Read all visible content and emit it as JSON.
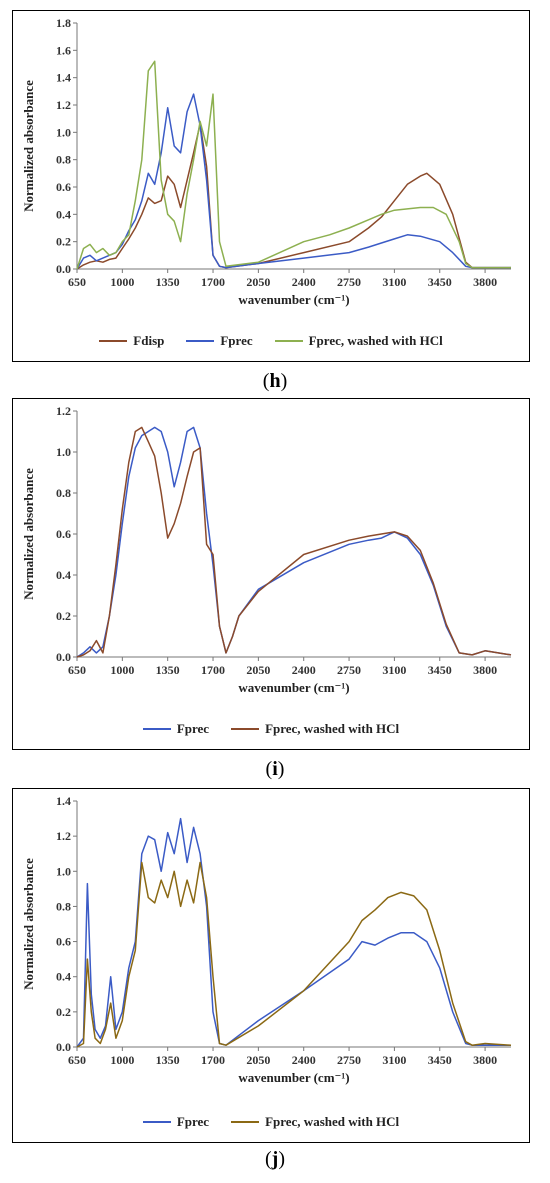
{
  "chart_data": [
    {
      "type": "line",
      "panel_label": "h",
      "xlabel": "wavenumber (cm⁻¹)",
      "ylabel": "Normalized absorbance",
      "xlim": [
        650,
        4000
      ],
      "ylim": [
        0,
        1.8
      ],
      "xticks": [
        650,
        1000,
        1350,
        1700,
        2050,
        2400,
        2750,
        3100,
        3450,
        3800
      ],
      "yticks": [
        "0.0",
        "0.2",
        "0.4",
        "0.6",
        "0.8",
        "1.0",
        "1.2",
        "1.4",
        "1.6",
        "1.8"
      ],
      "legend_position": "bottom",
      "series": [
        {
          "name": "Fdisp",
          "color": "#8B4A2B",
          "x": [
            650,
            700,
            750,
            800,
            850,
            900,
            950,
            1000,
            1050,
            1100,
            1150,
            1200,
            1250,
            1300,
            1350,
            1400,
            1450,
            1500,
            1550,
            1600,
            1650,
            1700,
            1750,
            1800,
            2050,
            2400,
            2750,
            2900,
            3000,
            3100,
            3200,
            3300,
            3350,
            3450,
            3550,
            3650,
            3700,
            3800,
            4000
          ],
          "y": [
            0,
            0.03,
            0.05,
            0.06,
            0.05,
            0.07,
            0.08,
            0.15,
            0.22,
            0.3,
            0.4,
            0.52,
            0.48,
            0.5,
            0.68,
            0.62,
            0.45,
            0.65,
            0.85,
            1.06,
            0.75,
            0.1,
            0.02,
            0.01,
            0.04,
            0.12,
            0.2,
            0.3,
            0.38,
            0.5,
            0.62,
            0.68,
            0.7,
            0.62,
            0.4,
            0.05,
            0.01,
            0.01,
            0.01
          ]
        },
        {
          "name": "Fprec",
          "color": "#3B5BC6",
          "x": [
            650,
            700,
            750,
            800,
            850,
            900,
            950,
            1000,
            1050,
            1100,
            1150,
            1200,
            1250,
            1300,
            1350,
            1400,
            1450,
            1500,
            1550,
            1600,
            1650,
            1700,
            1750,
            1800,
            2050,
            2400,
            2750,
            2900,
            3000,
            3100,
            3200,
            3300,
            3450,
            3550,
            3650,
            3700,
            3800,
            4000
          ],
          "y": [
            0,
            0.08,
            0.1,
            0.06,
            0.08,
            0.1,
            0.12,
            0.18,
            0.28,
            0.36,
            0.5,
            0.7,
            0.62,
            0.85,
            1.18,
            0.9,
            0.85,
            1.15,
            1.28,
            1.05,
            0.65,
            0.1,
            0.02,
            0.01,
            0.04,
            0.08,
            0.12,
            0.16,
            0.19,
            0.22,
            0.25,
            0.24,
            0.2,
            0.12,
            0.02,
            0.01,
            0.01,
            0.01
          ]
        },
        {
          "name": "Fprec, washed with HCl",
          "color": "#8DB050",
          "x": [
            650,
            700,
            750,
            800,
            850,
            900,
            950,
            1000,
            1050,
            1100,
            1150,
            1200,
            1250,
            1300,
            1350,
            1400,
            1450,
            1500,
            1550,
            1600,
            1650,
            1700,
            1750,
            1800,
            2050,
            2400,
            2600,
            2750,
            2900,
            3000,
            3100,
            3200,
            3300,
            3400,
            3500,
            3600,
            3650,
            3700,
            3800,
            4000
          ],
          "y": [
            0,
            0.15,
            0.18,
            0.12,
            0.15,
            0.1,
            0.12,
            0.2,
            0.25,
            0.5,
            0.8,
            1.45,
            1.52,
            0.65,
            0.4,
            0.35,
            0.2,
            0.55,
            0.8,
            1.08,
            0.9,
            1.28,
            0.2,
            0.02,
            0.05,
            0.2,
            0.25,
            0.3,
            0.36,
            0.4,
            0.43,
            0.44,
            0.45,
            0.45,
            0.4,
            0.2,
            0.04,
            0.01,
            0.01,
            0.01
          ]
        }
      ]
    },
    {
      "type": "line",
      "panel_label": "i",
      "xlabel": "wavenumber (cm⁻¹)",
      "ylabel": "Normalized absorbance",
      "xlim": [
        650,
        4000
      ],
      "ylim": [
        0,
        1.2
      ],
      "xticks": [
        650,
        1000,
        1350,
        1700,
        2050,
        2400,
        2750,
        3100,
        3450,
        3800
      ],
      "yticks": [
        "0.0",
        "0.2",
        "0.4",
        "0.6",
        "0.8",
        "1.0",
        "1.2"
      ],
      "legend_position": "bottom",
      "series": [
        {
          "name": "Fprec",
          "color": "#3B5BC6",
          "x": [
            650,
            700,
            750,
            800,
            850,
            900,
            950,
            1000,
            1050,
            1100,
            1150,
            1200,
            1250,
            1300,
            1350,
            1400,
            1450,
            1500,
            1550,
            1600,
            1650,
            1700,
            1750,
            1800,
            1850,
            1900,
            2050,
            2400,
            2750,
            2900,
            3000,
            3100,
            3200,
            3300,
            3400,
            3500,
            3600,
            3700,
            3800,
            4000
          ],
          "y": [
            0,
            0.02,
            0.05,
            0.02,
            0.05,
            0.2,
            0.4,
            0.65,
            0.88,
            1.02,
            1.08,
            1.1,
            1.12,
            1.1,
            1.0,
            0.83,
            0.95,
            1.1,
            1.12,
            1.02,
            0.7,
            0.45,
            0.15,
            0.02,
            0.1,
            0.2,
            0.33,
            0.46,
            0.55,
            0.57,
            0.58,
            0.61,
            0.58,
            0.5,
            0.35,
            0.15,
            0.02,
            0.01,
            0.03,
            0.01
          ]
        },
        {
          "name": "Fprec, washed with HCl",
          "color": "#8B4A2B",
          "x": [
            650,
            700,
            750,
            800,
            850,
            900,
            950,
            1000,
            1050,
            1100,
            1150,
            1200,
            1250,
            1300,
            1350,
            1400,
            1450,
            1500,
            1550,
            1600,
            1650,
            1700,
            1750,
            1800,
            1850,
            1900,
            2050,
            2400,
            2750,
            2900,
            3000,
            3100,
            3200,
            3300,
            3400,
            3500,
            3600,
            3700,
            3800,
            4000
          ],
          "y": [
            0,
            0.01,
            0.03,
            0.08,
            0.02,
            0.2,
            0.45,
            0.72,
            0.95,
            1.1,
            1.12,
            1.05,
            0.98,
            0.8,
            0.58,
            0.65,
            0.75,
            0.88,
            1.0,
            1.02,
            0.55,
            0.5,
            0.15,
            0.02,
            0.1,
            0.2,
            0.32,
            0.5,
            0.57,
            0.59,
            0.6,
            0.61,
            0.59,
            0.52,
            0.36,
            0.16,
            0.02,
            0.01,
            0.03,
            0.01
          ]
        }
      ]
    },
    {
      "type": "line",
      "panel_label": "j",
      "xlabel": "wavenumber (cm⁻¹)",
      "ylabel": "Normalized absorbance",
      "xlim": [
        650,
        4000
      ],
      "ylim": [
        0,
        1.4
      ],
      "xticks": [
        650,
        1000,
        1350,
        1700,
        2050,
        2400,
        2750,
        3100,
        3450,
        3800
      ],
      "yticks": [
        "0.0",
        "0.2",
        "0.4",
        "0.6",
        "0.8",
        "1.0",
        "1.2",
        "1.4"
      ],
      "legend_position": "bottom",
      "series": [
        {
          "name": "Fprec",
          "color": "#3B5BC6",
          "x": [
            650,
            700,
            730,
            760,
            790,
            830,
            870,
            910,
            950,
            1000,
            1050,
            1100,
            1150,
            1200,
            1250,
            1300,
            1350,
            1400,
            1450,
            1500,
            1550,
            1600,
            1650,
            1700,
            1750,
            1800,
            2050,
            2400,
            2750,
            2850,
            2950,
            3050,
            3150,
            3250,
            3350,
            3450,
            3550,
            3650,
            3700,
            3800,
            4000
          ],
          "y": [
            0,
            0.05,
            0.93,
            0.3,
            0.1,
            0.05,
            0.12,
            0.4,
            0.1,
            0.2,
            0.45,
            0.6,
            1.1,
            1.2,
            1.18,
            1.0,
            1.22,
            1.1,
            1.3,
            1.05,
            1.25,
            1.1,
            0.8,
            0.2,
            0.02,
            0.01,
            0.15,
            0.32,
            0.5,
            0.6,
            0.58,
            0.62,
            0.65,
            0.65,
            0.6,
            0.45,
            0.2,
            0.02,
            0.01,
            0.01,
            0.01
          ]
        },
        {
          "name": "Fprec, washed with HCl",
          "color": "#8B6914",
          "x": [
            650,
            700,
            730,
            760,
            790,
            830,
            870,
            910,
            950,
            1000,
            1050,
            1100,
            1150,
            1200,
            1250,
            1300,
            1350,
            1400,
            1450,
            1500,
            1550,
            1600,
            1650,
            1700,
            1750,
            1800,
            2050,
            2400,
            2750,
            2850,
            2950,
            3050,
            3150,
            3250,
            3350,
            3450,
            3550,
            3650,
            3700,
            3800,
            4000
          ],
          "y": [
            0,
            0.02,
            0.5,
            0.2,
            0.05,
            0.02,
            0.1,
            0.25,
            0.05,
            0.15,
            0.4,
            0.55,
            1.05,
            0.85,
            0.82,
            0.95,
            0.85,
            1.0,
            0.8,
            0.95,
            0.82,
            1.05,
            0.85,
            0.4,
            0.02,
            0.01,
            0.12,
            0.32,
            0.6,
            0.72,
            0.78,
            0.85,
            0.88,
            0.86,
            0.78,
            0.55,
            0.25,
            0.03,
            0.01,
            0.02,
            0.01
          ]
        }
      ]
    }
  ],
  "captions": [
    "(h)",
    "(i)",
    "(j)"
  ],
  "caption_letters": [
    "h",
    "i",
    "j"
  ]
}
